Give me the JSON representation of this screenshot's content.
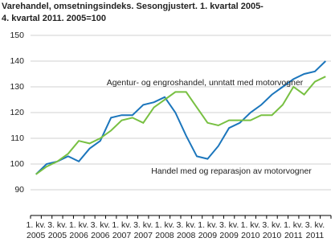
{
  "chart_data": {
    "type": "line",
    "title_lines": [
      "Varehandel, omsetningsindeks. Sesongjustert. 1. kvartal 2005-",
      "4. kvartal 2011. 2005=100"
    ],
    "categories": [
      "1. kv. 2005",
      null,
      "3. kv. 2005",
      null,
      "1. kv. 2006",
      null,
      "3. kv. 2006",
      null,
      "1. kv. 2007",
      null,
      "3. kv. 2007",
      null,
      "1. kv. 2008",
      null,
      "3. kv. 2008",
      null,
      "1. kv. 2009",
      null,
      "3. kv. 2009",
      null,
      "1. kv. 2010",
      null,
      "3. kv. 2010",
      null,
      "1. kv. 2011",
      null,
      "3. kv. 2011",
      null
    ],
    "series": [
      {
        "name": "Handel med og reparasjon av motorvogner",
        "color": "#1c76bc",
        "values": [
          96,
          100,
          101,
          103,
          101,
          106,
          109,
          118,
          119,
          119,
          123,
          124,
          126,
          120,
          111,
          103,
          102,
          107,
          114,
          116,
          120,
          123,
          127,
          130,
          133,
          135,
          136,
          140
        ]
      },
      {
        "name": "Agentur- og engroshandel, unntatt med motorvogner",
        "color": "#78c042",
        "values": [
          96,
          99,
          101,
          104,
          109,
          108,
          110,
          113,
          117,
          118,
          116,
          122,
          125,
          128,
          128,
          122,
          116,
          115,
          117,
          117,
          117,
          119,
          119,
          123,
          130,
          127,
          132,
          134
        ]
      }
    ],
    "ylim": [
      80,
      150
    ],
    "yticks": [
      90,
      100,
      110,
      120,
      130,
      140,
      150
    ],
    "grid": true
  }
}
